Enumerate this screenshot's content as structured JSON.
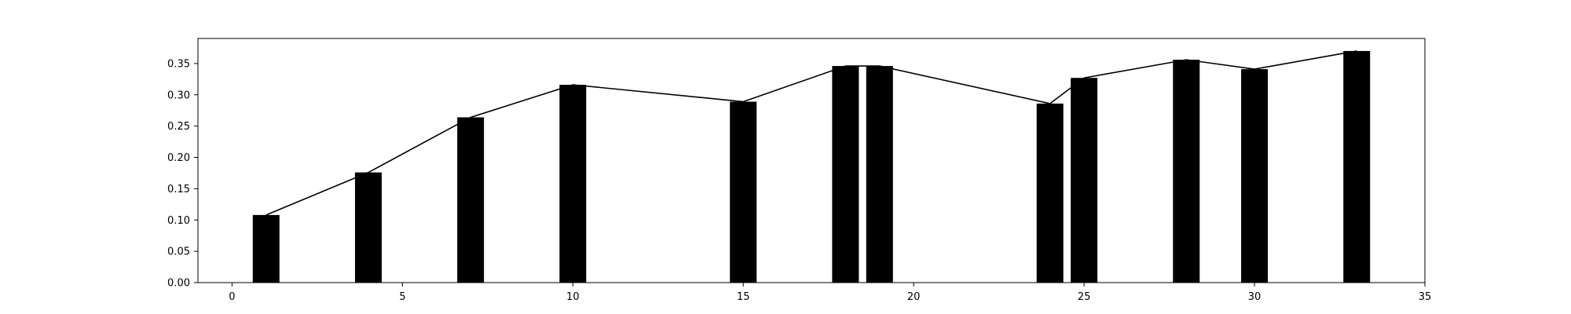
{
  "chart_data": {
    "type": "bar",
    "title": "",
    "xlabel": "",
    "ylabel": "",
    "xlim": [
      -1,
      35
    ],
    "ylim": [
      0,
      0.39
    ],
    "grid": false,
    "legend": "none",
    "x_ticks": [
      0,
      5,
      10,
      15,
      20,
      25,
      30,
      35
    ],
    "y_ticks": [
      0.0,
      0.05,
      0.1,
      0.15,
      0.2,
      0.25,
      0.3,
      0.35
    ],
    "x_tick_labels": [
      "0",
      "5",
      "10",
      "15",
      "20",
      "25",
      "30",
      "35"
    ],
    "y_tick_labels": [
      "0.00",
      "0.05",
      "0.10",
      "0.15",
      "0.20",
      "0.25",
      "0.30",
      "0.35"
    ],
    "x": [
      1,
      4,
      7,
      10,
      15,
      18,
      19,
      24,
      25,
      28,
      30,
      33
    ],
    "series": [
      {
        "type": "bar",
        "color": "#000000",
        "values": [
          0.108,
          0.176,
          0.264,
          0.316,
          0.289,
          0.346,
          0.346,
          0.286,
          0.327,
          0.356,
          0.341,
          0.37
        ]
      },
      {
        "type": "line",
        "color": "#000000",
        "values": [
          0.108,
          0.176,
          0.264,
          0.316,
          0.289,
          0.346,
          0.346,
          0.286,
          0.327,
          0.356,
          0.341,
          0.37
        ]
      }
    ]
  }
}
